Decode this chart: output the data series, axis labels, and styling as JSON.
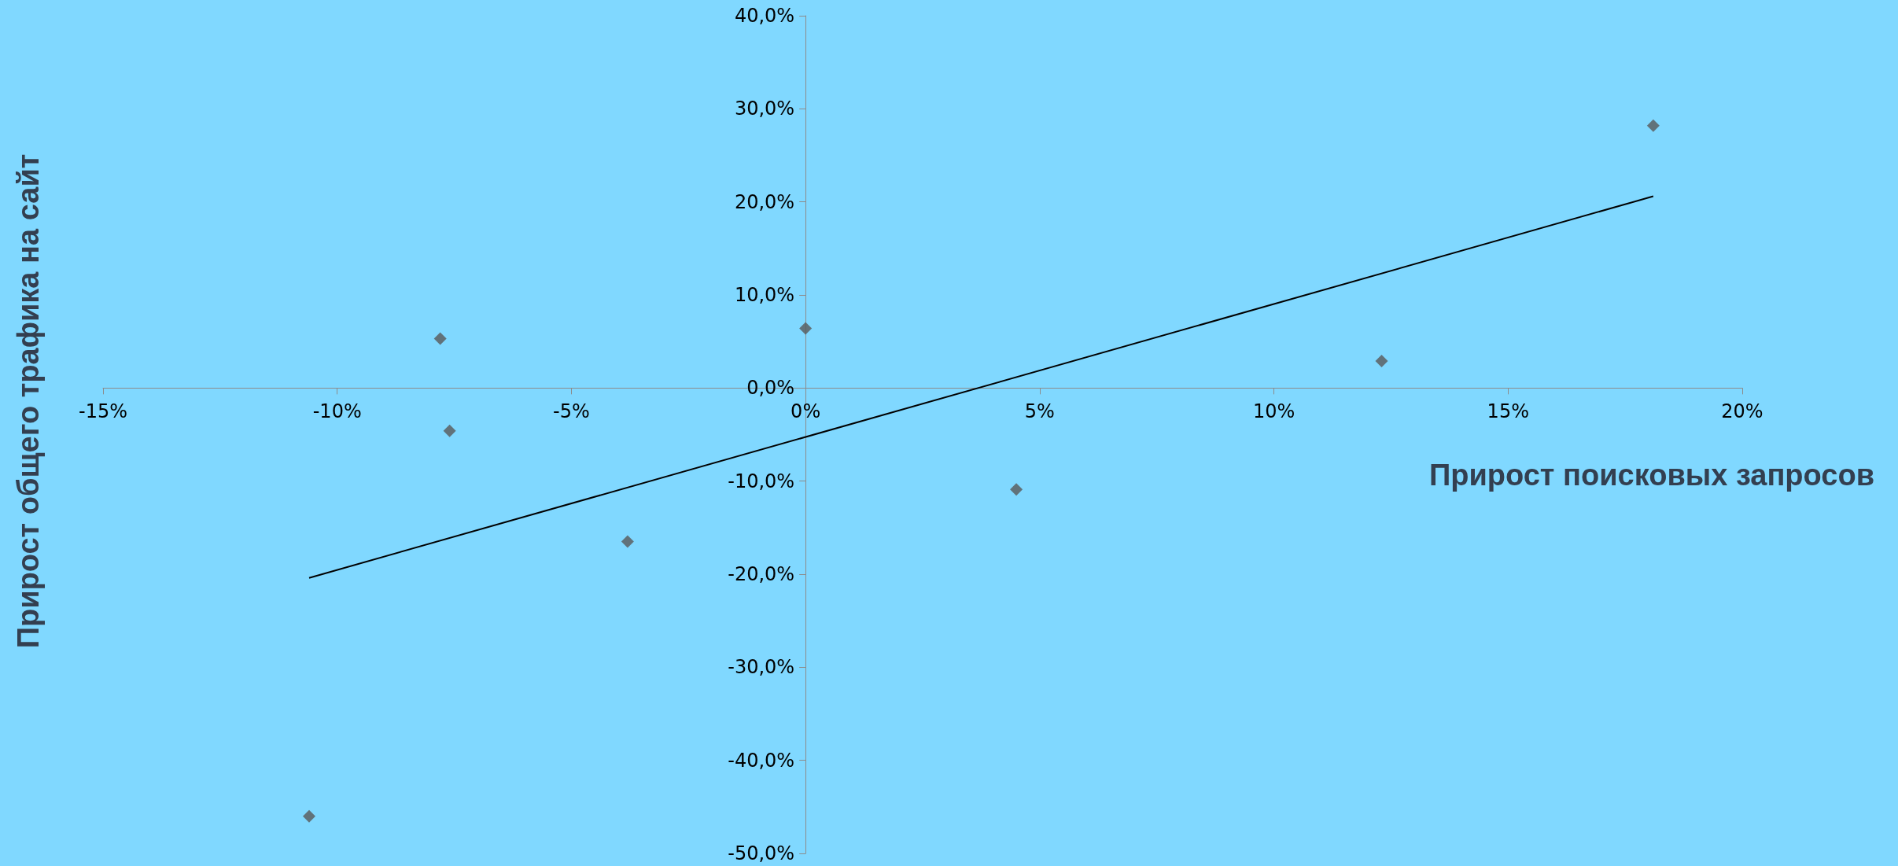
{
  "chart_data": {
    "type": "scatter",
    "xlabel": "Прирост поисковых запросов",
    "ylabel": "Прирост общего трафика на сайт",
    "xlim": [
      -15,
      20
    ],
    "xticks": [
      {
        "value": -15,
        "label": "-15%"
      },
      {
        "value": -10,
        "label": "-10%"
      },
      {
        "value": -5,
        "label": "-5%"
      },
      {
        "value": 0,
        "label": "0%"
      },
      {
        "value": 5,
        "label": "5%"
      },
      {
        "value": 10,
        "label": "10%"
      },
      {
        "value": 15,
        "label": "15%"
      },
      {
        "value": 20,
        "label": "20%"
      }
    ],
    "ylim": [
      -50,
      40
    ],
    "yticks": [
      {
        "value": -50,
        "label": "-50,0%"
      },
      {
        "value": -40,
        "label": "-40,0%"
      },
      {
        "value": -30,
        "label": "-30,0%"
      },
      {
        "value": -20,
        "label": "-20,0%"
      },
      {
        "value": -10,
        "label": "-10,0%"
      },
      {
        "value": 0,
        "label": "0,0%"
      },
      {
        "value": 10,
        "label": "10,0%"
      },
      {
        "value": 20,
        "label": "20,0%"
      },
      {
        "value": 30,
        "label": "30,0%"
      },
      {
        "value": 40,
        "label": "40,0%"
      }
    ],
    "marker": "diamond",
    "grid": false,
    "series": [
      {
        "color": "#595959",
        "x": [
          -10.6,
          -7.8,
          -7.6,
          -3.8,
          0.0,
          4.5,
          12.3,
          18.1
        ],
        "values": [
          -46.0,
          5.3,
          -4.6,
          -16.5,
          6.4,
          -10.9,
          2.9,
          28.2
        ]
      },
      {
        "type": "line",
        "color": "#000000",
        "marker": "none",
        "x": [
          -10.6,
          18.1
        ],
        "values": [
          -20.4,
          20.6
        ]
      }
    ]
  }
}
